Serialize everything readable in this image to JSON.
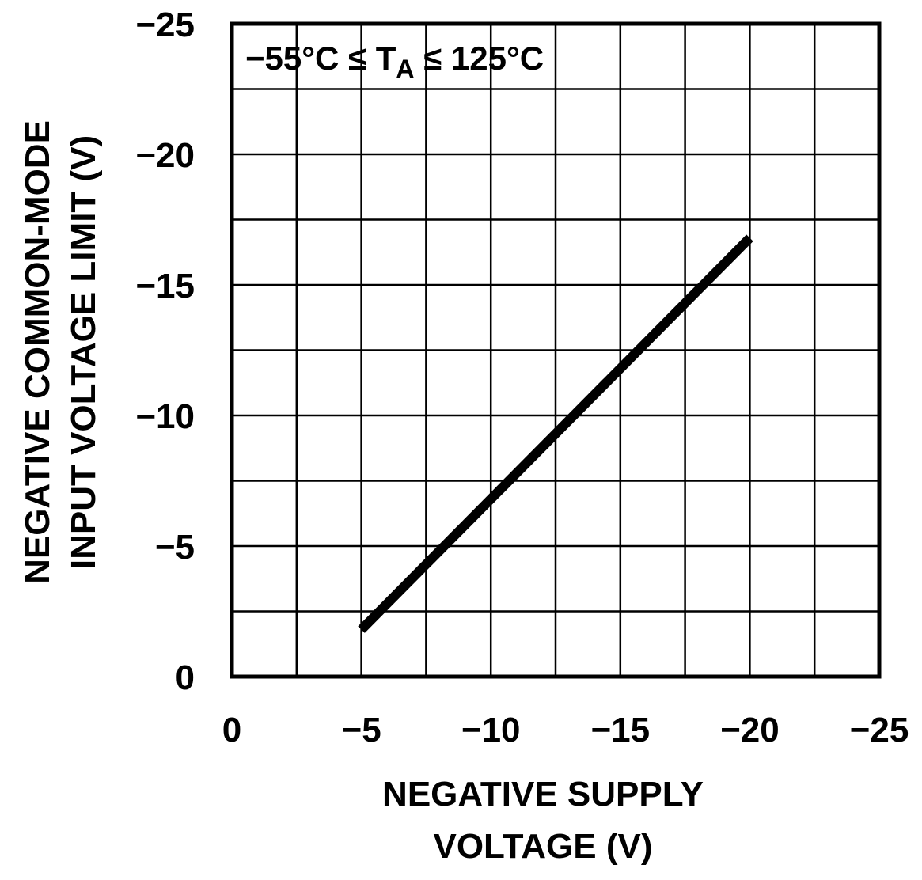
{
  "chart_data": {
    "type": "line",
    "x_axis": {
      "label_lines": [
        "NEGATIVE SUPPLY",
        "VOLTAGE (V)"
      ],
      "range": [
        0,
        -25
      ],
      "ticks": [
        0,
        -5,
        -10,
        -15,
        -20,
        -25
      ],
      "tick_labels": [
        "0",
        "−5",
        "−10",
        "−15",
        "−20",
        "−25"
      ]
    },
    "y_axis": {
      "label_lines": [
        "NEGATIVE COMMON-MODE",
        "INPUT VOLTAGE LIMIT (V)"
      ],
      "range": [
        0,
        -25
      ],
      "ticks": [
        0,
        -5,
        -10,
        -15,
        -20,
        -25
      ],
      "tick_labels": [
        "0",
        "−5",
        "−10",
        "−15",
        "−20",
        "−25"
      ]
    },
    "grid": true,
    "grid_divisions": 10,
    "series": [
      {
        "x": [
          -5,
          -20
        ],
        "y": [
          -1.8,
          -16.8
        ],
        "color": "#000000"
      }
    ],
    "annotation": {
      "pre": "−55°C ≤ T",
      "sub": "A",
      "post": " ≤ 125°C"
    }
  }
}
